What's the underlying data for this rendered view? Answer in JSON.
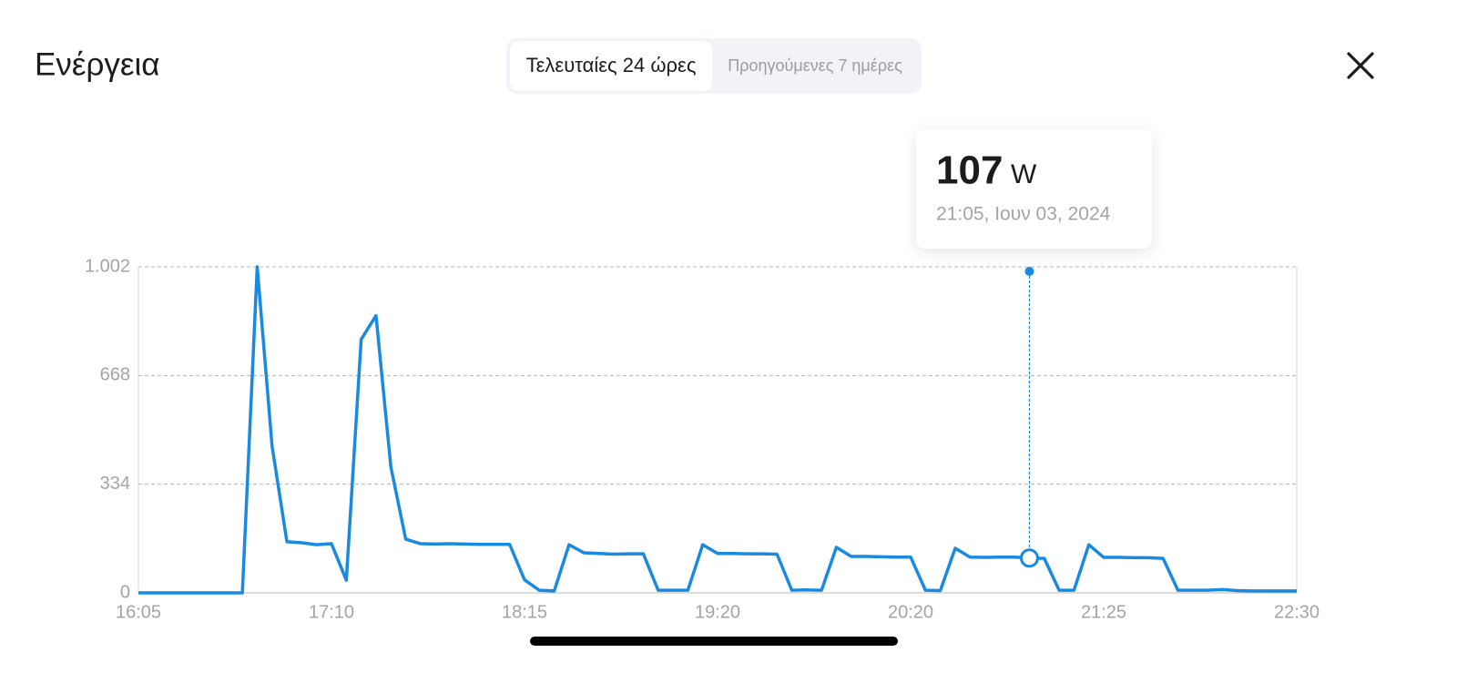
{
  "header": {
    "title": "Ενέργεια"
  },
  "tabs": [
    {
      "label": "Τελευταίες 24 ώρες",
      "active": true
    },
    {
      "label": "Προηγούμενες 7 ημέρες",
      "active": false
    }
  ],
  "tooltip": {
    "value": 107,
    "unit": "W",
    "date": "21:05, Ιουν 03, 2024"
  },
  "chart_data": {
    "type": "line",
    "color": "#1a8ae0",
    "grid": true,
    "categories": [
      "16:05",
      null,
      null,
      null,
      null,
      null,
      null,
      null,
      null,
      null,
      null,
      null,
      null,
      "17:10",
      null,
      null,
      null,
      null,
      null,
      null,
      null,
      null,
      null,
      null,
      null,
      null,
      "18:15",
      null,
      null,
      null,
      null,
      null,
      null,
      null,
      null,
      null,
      null,
      null,
      null,
      "19:20",
      null,
      null,
      null,
      null,
      null,
      null,
      null,
      null,
      null,
      null,
      null,
      null,
      "20:20",
      null,
      null,
      null,
      null,
      null,
      null,
      null,
      null,
      null,
      null,
      null,
      null,
      "21:25",
      null,
      null,
      null,
      null,
      null,
      null,
      null,
      null,
      null,
      null,
      null,
      null,
      "22:30"
    ],
    "values": [
      0,
      0,
      0,
      0,
      0,
      0,
      0,
      0,
      1002,
      451,
      157,
      154,
      148,
      151,
      39,
      779,
      852,
      387,
      165,
      151,
      150,
      151,
      150,
      149,
      149,
      149,
      40,
      8,
      6,
      148,
      123,
      121,
      119,
      120,
      120,
      8,
      8,
      8,
      148,
      121,
      121,
      120,
      120,
      119,
      8,
      9,
      8,
      140,
      112,
      112,
      111,
      110,
      110,
      8,
      7,
      137,
      110,
      109,
      110,
      110,
      107,
      106,
      8,
      8,
      148,
      109,
      109,
      108,
      108,
      106,
      8,
      8,
      8,
      10,
      7,
      6,
      6,
      6,
      6
    ],
    "ylim": [
      0,
      1002
    ],
    "yticks": [
      0,
      334,
      668,
      {
        "value": 1002,
        "label": "1.002"
      }
    ]
  }
}
